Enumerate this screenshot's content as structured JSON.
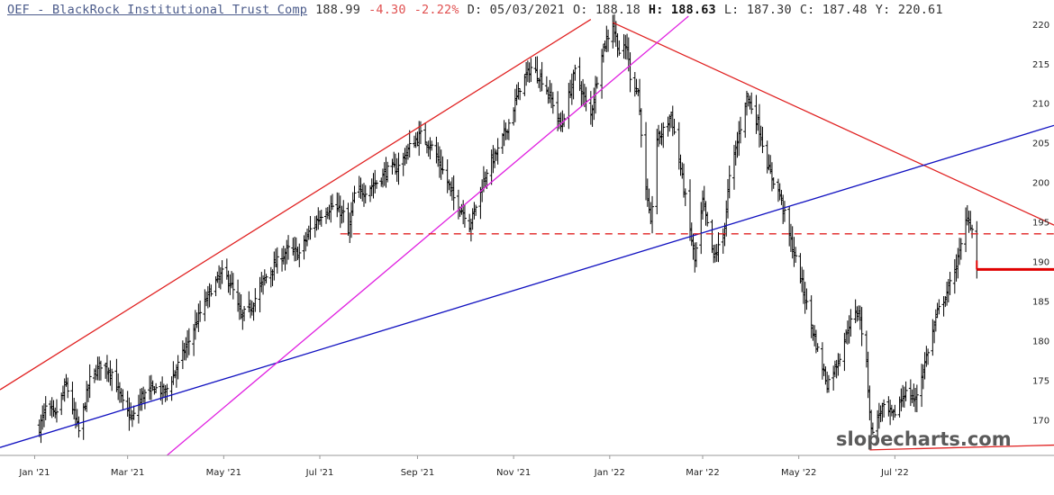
{
  "header": {
    "ticker": "OEF - BlackRock Institutional Trust Comp",
    "last": "188.99",
    "change": "-4.30",
    "change_pct": "-2.22%",
    "date": "D: 05/03/2021",
    "open": "O: 188.18",
    "high_label": "H:",
    "high_value": "188.63",
    "low": "L: 187.30",
    "close": "C: 187.48",
    "y_readout": "Y: 220.61"
  },
  "watermark": "slopecharts.com",
  "colors": {
    "bars": "#000000",
    "red_line": "#e02020",
    "blue_line": "#1010c0",
    "magenta_line": "#e020e0",
    "price_marker": "#e00000"
  },
  "chart_data": {
    "type": "ohlc-bar",
    "y_ticks": [
      220,
      215,
      210,
      205,
      200,
      195,
      190,
      185,
      180,
      175,
      170
    ],
    "y_range": [
      165.5,
      221
    ],
    "x_labels": [
      "Jan '21",
      "Mar '21",
      "May '21",
      "Jul '21",
      "Sep '21",
      "Nov '21",
      "Jan '22",
      "Mar '22",
      "May '22",
      "Jul '22"
    ],
    "x_range": [
      "2020-12-10",
      "2022-10-10"
    ],
    "x_label_dates": [
      "2021-01-01",
      "2021-03-01",
      "2021-05-01",
      "2021-07-01",
      "2021-09-01",
      "2021-11-01",
      "2022-01-01",
      "2022-03-01",
      "2022-05-01",
      "2022-07-01"
    ],
    "price_path": [
      [
        "2021-01-04",
        169.0
      ],
      [
        "2021-01-08",
        171.5
      ],
      [
        "2021-01-14",
        170.5
      ],
      [
        "2021-01-21",
        174.5
      ],
      [
        "2021-01-29",
        168.5
      ],
      [
        "2021-02-05",
        175.0
      ],
      [
        "2021-02-12",
        177.0
      ],
      [
        "2021-02-19",
        176.0
      ],
      [
        "2021-02-26",
        172.0
      ],
      [
        "2021-03-04",
        170.0
      ],
      [
        "2021-03-10",
        173.0
      ],
      [
        "2021-03-18",
        174.0
      ],
      [
        "2021-03-25",
        173.5
      ],
      [
        "2021-04-01",
        176.5
      ],
      [
        "2021-04-09",
        180.0
      ],
      [
        "2021-04-16",
        183.5
      ],
      [
        "2021-04-23",
        186.5
      ],
      [
        "2021-04-30",
        188.5
      ],
      [
        "2021-05-05",
        187.5
      ],
      [
        "2021-05-12",
        183.0
      ],
      [
        "2021-05-19",
        184.5
      ],
      [
        "2021-05-26",
        187.5
      ],
      [
        "2021-06-04",
        190.0
      ],
      [
        "2021-06-11",
        191.5
      ],
      [
        "2021-06-18",
        191.0
      ],
      [
        "2021-06-25",
        194.0
      ],
      [
        "2021-07-02",
        196.0
      ],
      [
        "2021-07-09",
        197.0
      ],
      [
        "2021-07-16",
        196.0
      ],
      [
        "2021-07-19",
        193.5
      ],
      [
        "2021-07-23",
        198.5
      ],
      [
        "2021-07-30",
        199.0
      ],
      [
        "2021-08-06",
        200.0
      ],
      [
        "2021-08-13",
        201.5
      ],
      [
        "2021-08-20",
        202.0
      ],
      [
        "2021-08-27",
        204.5
      ],
      [
        "2021-09-03",
        206.0
      ],
      [
        "2021-09-10",
        204.5
      ],
      [
        "2021-09-17",
        201.5
      ],
      [
        "2021-09-24",
        198.0
      ],
      [
        "2021-10-01",
        196.0
      ],
      [
        "2021-10-04",
        194.5
      ],
      [
        "2021-10-08",
        197.0
      ],
      [
        "2021-10-15",
        201.5
      ],
      [
        "2021-10-22",
        204.0
      ],
      [
        "2021-10-29",
        207.5
      ],
      [
        "2021-11-05",
        212.0
      ],
      [
        "2021-11-12",
        214.5
      ],
      [
        "2021-11-19",
        213.0
      ],
      [
        "2021-11-26",
        210.0
      ],
      [
        "2021-12-01",
        207.0
      ],
      [
        "2021-12-03",
        208.5
      ],
      [
        "2021-12-10",
        214.0
      ],
      [
        "2021-12-17",
        210.0
      ],
      [
        "2021-12-20",
        208.5
      ],
      [
        "2021-12-27",
        216.5
      ],
      [
        "2022-01-03",
        220.0
      ],
      [
        "2022-01-07",
        216.5
      ],
      [
        "2022-01-12",
        217.0
      ],
      [
        "2022-01-14",
        213.5
      ],
      [
        "2022-01-19",
        211.5
      ],
      [
        "2022-01-24",
        199.0
      ],
      [
        "2022-01-27",
        194.5
      ],
      [
        "2022-01-31",
        205.5
      ],
      [
        "2022-02-04",
        206.5
      ],
      [
        "2022-02-09",
        208.5
      ],
      [
        "2022-02-14",
        203.0
      ],
      [
        "2022-02-18",
        198.0
      ],
      [
        "2022-02-24",
        190.0
      ],
      [
        "2022-03-01",
        197.5
      ],
      [
        "2022-03-08",
        190.5
      ],
      [
        "2022-03-14",
        193.0
      ],
      [
        "2022-03-18",
        200.5
      ],
      [
        "2022-03-25",
        207.0
      ],
      [
        "2022-03-29",
        211.0
      ],
      [
        "2022-04-05",
        207.5
      ],
      [
        "2022-04-12",
        201.5
      ],
      [
        "2022-04-19",
        198.5
      ],
      [
        "2022-04-26",
        192.5
      ],
      [
        "2022-05-02",
        188.0
      ],
      [
        "2022-05-09",
        182.0
      ],
      [
        "2022-05-12",
        179.5
      ],
      [
        "2022-05-19",
        174.5
      ],
      [
        "2022-05-26",
        177.5
      ],
      [
        "2022-06-02",
        182.0
      ],
      [
        "2022-06-08",
        184.0
      ],
      [
        "2022-06-13",
        177.0
      ],
      [
        "2022-06-16",
        168.5
      ],
      [
        "2022-06-23",
        171.5
      ],
      [
        "2022-06-30",
        170.5
      ],
      [
        "2022-07-07",
        173.5
      ],
      [
        "2022-07-14",
        172.5
      ],
      [
        "2022-07-21",
        178.0
      ],
      [
        "2022-07-28",
        183.5
      ],
      [
        "2022-08-04",
        186.5
      ],
      [
        "2022-08-11",
        191.0
      ],
      [
        "2022-08-16",
        196.0
      ],
      [
        "2022-08-19",
        194.0
      ],
      [
        "2022-08-22",
        189.0
      ]
    ],
    "trend_lines": [
      {
        "color": "red",
        "from": [
          "2020-12-10",
          173.8
        ],
        "to": [
          "2021-12-20",
          220.6
        ]
      },
      {
        "color": "red",
        "from": [
          "2022-01-03",
          220.2
        ],
        "to": [
          "2022-10-10",
          194.6
        ]
      },
      {
        "color": "red",
        "from": [
          "2022-06-15",
          166.2
        ],
        "to": [
          "2022-10-10",
          166.8
        ]
      },
      {
        "color": "blue",
        "from": [
          "2020-12-10",
          166.5
        ],
        "to": [
          "2022-10-10",
          207.2
        ]
      },
      {
        "color": "magenta",
        "from": [
          "2021-03-26",
          165.5
        ],
        "to": [
          "2022-02-20",
          221.0
        ]
      },
      {
        "color": "red-dashed",
        "from": [
          "2021-07-14",
          193.5
        ],
        "to": [
          "2022-10-10",
          193.5
        ]
      }
    ],
    "last_price_marker": {
      "date": "2022-08-22",
      "value": 189.0
    }
  }
}
